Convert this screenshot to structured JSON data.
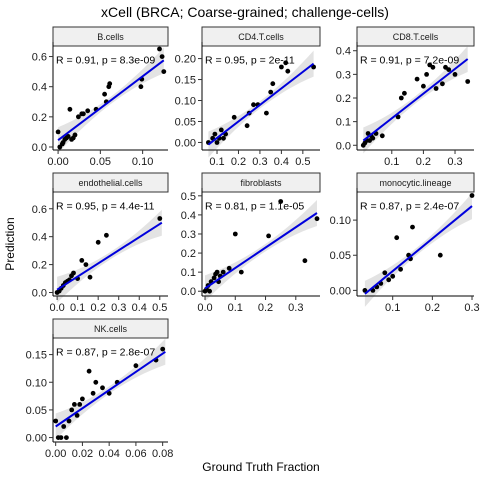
{
  "figure": {
    "title": "xCell (BRCA; Coarse-grained; challenge-cells)",
    "xlabel": "Ground Truth Fraction",
    "ylabel": "Prediction",
    "colors": {
      "points": "#000000",
      "fit": "#0000dd",
      "band": "#c0c0c0",
      "strip_fill": "#f0f0f0",
      "strip_border": "#333333"
    }
  },
  "chart_data": [
    {
      "type": "scatter",
      "title": "B.cells",
      "stat": "R = 0.91, p = 8.3e-09",
      "xlim": [
        -0.006,
        0.13
      ],
      "ylim": [
        -0.02,
        0.67
      ],
      "xticks": [
        0.0,
        0.05,
        0.1
      ],
      "yticks": [
        0.0,
        0.2,
        0.4,
        0.6
      ],
      "x": [
        0.0,
        0.002,
        0.005,
        0.006,
        0.008,
        0.01,
        0.012,
        0.014,
        0.016,
        0.018,
        0.02,
        0.024,
        0.028,
        0.03,
        0.035,
        0.045,
        0.055,
        0.057,
        0.06,
        0.061,
        0.098,
        0.099,
        0.12,
        0.123,
        0.125
      ],
      "y": [
        0.1,
        0.0,
        0.02,
        0.03,
        0.05,
        0.06,
        0.07,
        0.25,
        0.05,
        0.06,
        0.08,
        0.2,
        0.22,
        0.22,
        0.24,
        0.25,
        0.35,
        0.3,
        0.4,
        0.42,
        0.4,
        0.45,
        0.65,
        0.6,
        0.5
      ],
      "fit": [
        [
          0.0,
          0.045
        ],
        [
          0.125,
          0.575
        ]
      ]
    },
    {
      "type": "scatter",
      "title": "CD4.T.cells",
      "stat": "R = 0.95, p = 2e-11",
      "xlim": [
        0.03,
        0.58
      ],
      "ylim": [
        -0.018,
        0.23
      ],
      "xticks": [
        0.1,
        0.2,
        0.3,
        0.4,
        0.5
      ],
      "yticks": [
        0.0,
        0.05,
        0.1,
        0.15,
        0.2
      ],
      "x": [
        0.06,
        0.08,
        0.09,
        0.1,
        0.11,
        0.12,
        0.13,
        0.14,
        0.18,
        0.24,
        0.25,
        0.27,
        0.29,
        0.33,
        0.35,
        0.36,
        0.4,
        0.42,
        0.43,
        0.55
      ],
      "y": [
        0.0,
        0.01,
        0.02,
        0.0,
        0.01,
        0.03,
        0.01,
        0.02,
        0.06,
        0.04,
        0.07,
        0.09,
        0.09,
        0.07,
        0.12,
        0.14,
        0.18,
        0.19,
        0.17,
        0.18
      ],
      "fit": [
        [
          0.06,
          -0.005
        ],
        [
          0.55,
          0.188
        ]
      ]
    },
    {
      "type": "scatter",
      "title": "CD8.T.cells",
      "stat": "R = 0.91, p = 7.2e-09",
      "xlim": [
        -0.01,
        0.36
      ],
      "ylim": [
        -0.02,
        0.42
      ],
      "xticks": [
        0.1,
        0.2,
        0.3
      ],
      "yticks": [
        0.0,
        0.1,
        0.2,
        0.3,
        0.4
      ],
      "x": [
        0.01,
        0.015,
        0.02,
        0.025,
        0.03,
        0.035,
        0.04,
        0.05,
        0.07,
        0.12,
        0.13,
        0.14,
        0.18,
        0.2,
        0.21,
        0.22,
        0.23,
        0.24,
        0.26,
        0.27,
        0.28,
        0.3,
        0.34
      ],
      "y": [
        0.0,
        0.01,
        0.02,
        0.05,
        0.02,
        0.04,
        0.03,
        0.05,
        0.04,
        0.12,
        0.2,
        0.22,
        0.28,
        0.25,
        0.3,
        0.34,
        0.33,
        0.24,
        0.26,
        0.33,
        0.32,
        0.3,
        0.27
      ],
      "fit": [
        [
          0.01,
          0.02
        ],
        [
          0.34,
          0.365
        ]
      ]
    },
    {
      "type": "scatter",
      "title": "endothelial.cells",
      "stat": "R = 0.95, p = 4.4e-11",
      "xlim": [
        -0.02,
        0.54
      ],
      "ylim": [
        -0.025,
        0.72
      ],
      "xticks": [
        0.0,
        0.1,
        0.2,
        0.3,
        0.4,
        0.5
      ],
      "yticks": [
        0.0,
        0.2,
        0.4,
        0.6
      ],
      "x": [
        0.0,
        0.01,
        0.02,
        0.03,
        0.04,
        0.05,
        0.06,
        0.07,
        0.08,
        0.1,
        0.12,
        0.14,
        0.16,
        0.2,
        0.24,
        0.5
      ],
      "y": [
        0.0,
        0.01,
        0.03,
        0.05,
        0.07,
        0.08,
        0.09,
        0.12,
        0.14,
        0.1,
        0.23,
        0.2,
        0.11,
        0.36,
        0.41,
        0.53
      ],
      "fit": [
        [
          0.0,
          0.02
        ],
        [
          0.51,
          0.5
        ]
      ]
    },
    {
      "type": "scatter",
      "title": "fibroblasts",
      "stat": "R = 0.81, p = 1.1e-05",
      "xlim": [
        -0.01,
        0.38
      ],
      "ylim": [
        -0.025,
        0.52
      ],
      "xticks": [
        0.0,
        0.1,
        0.2,
        0.3
      ],
      "yticks": [
        0.0,
        0.1,
        0.2,
        0.3,
        0.4,
        0.5
      ],
      "x": [
        0.0,
        0.005,
        0.01,
        0.015,
        0.02,
        0.03,
        0.035,
        0.04,
        0.045,
        0.05,
        0.06,
        0.08,
        0.1,
        0.12,
        0.21,
        0.25,
        0.33,
        0.37
      ],
      "y": [
        0.0,
        0.01,
        0.03,
        0.0,
        0.05,
        0.07,
        0.09,
        0.1,
        0.05,
        0.08,
        0.1,
        0.12,
        0.3,
        0.1,
        0.29,
        0.47,
        0.16,
        0.38
      ],
      "fit": [
        [
          0.0,
          0.015
        ],
        [
          0.37,
          0.41
        ]
      ]
    },
    {
      "type": "scatter",
      "title": "monocytic.lineage",
      "stat": "R = 0.87, p = 2.4e-07",
      "xlim": [
        0.01,
        0.305
      ],
      "ylim": [
        -0.008,
        0.14
      ],
      "xticks": [
        0.1,
        0.2,
        0.3
      ],
      "yticks": [
        0.0,
        0.05,
        0.1
      ],
      "x": [
        0.03,
        0.05,
        0.06,
        0.07,
        0.08,
        0.09,
        0.1,
        0.11,
        0.12,
        0.14,
        0.145,
        0.15,
        0.22,
        0.3
      ],
      "y": [
        0.0,
        0.0,
        0.005,
        0.01,
        0.025,
        0.015,
        0.02,
        0.075,
        0.03,
        0.05,
        0.045,
        0.09,
        0.05,
        0.135
      ],
      "fit": [
        [
          0.03,
          -0.005
        ],
        [
          0.3,
          0.12
        ]
      ]
    },
    {
      "type": "scatter",
      "title": "NK.cells",
      "stat": "R = 0.87, p = 2.8e-07",
      "xlim": [
        -0.002,
        0.084
      ],
      "ylim": [
        -0.008,
        0.18
      ],
      "xticks": [
        0.0,
        0.02,
        0.04,
        0.06,
        0.08
      ],
      "yticks": [
        0.0,
        0.05,
        0.1,
        0.15
      ],
      "x": [
        0.0,
        0.002,
        0.004,
        0.006,
        0.008,
        0.01,
        0.012,
        0.014,
        0.016,
        0.018,
        0.02,
        0.025,
        0.028,
        0.03,
        0.035,
        0.04,
        0.046,
        0.06,
        0.075,
        0.08
      ],
      "y": [
        0.03,
        0.0,
        0.0,
        0.02,
        0.0,
        0.03,
        0.05,
        0.06,
        0.04,
        0.06,
        0.07,
        0.12,
        0.08,
        0.1,
        0.09,
        0.08,
        0.1,
        0.13,
        0.14,
        0.16
      ],
      "fit": [
        [
          0.0,
          0.02
        ],
        [
          0.082,
          0.155
        ]
      ]
    }
  ]
}
